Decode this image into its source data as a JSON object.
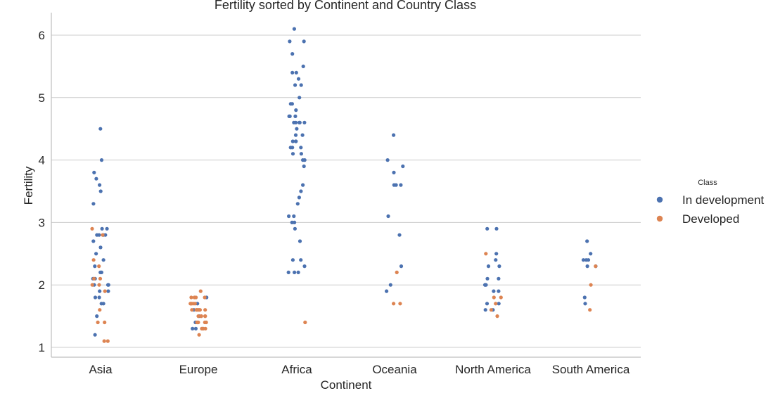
{
  "chart_data": {
    "type": "scatter",
    "style": "stripplot",
    "title": "Fertility sorted by Continent and Country Class",
    "xlabel": "Continent",
    "ylabel": "Fertility",
    "categories": [
      "Asia",
      "Europe",
      "Africa",
      "Oceania",
      "North America",
      "South America"
    ],
    "yticks": [
      1,
      2,
      3,
      4,
      5,
      6
    ],
    "ylim": [
      0.85,
      6.35
    ],
    "grid": "horizontal",
    "legend": {
      "title": "Class",
      "placement": "right"
    },
    "series": [
      {
        "name": "In development",
        "color": "#4c72b0",
        "points": {
          "Asia": [
            4.5,
            4.0,
            3.8,
            3.7,
            3.6,
            3.5,
            3.3,
            2.9,
            2.9,
            2.8,
            2.8,
            2.8,
            2.8,
            2.7,
            2.6,
            2.5,
            2.4,
            2.3,
            2.2,
            2.2,
            2.1,
            2.1,
            2.0,
            2.0,
            2.0,
            1.9,
            1.9,
            1.8,
            1.8,
            1.7,
            1.7,
            1.5,
            1.2
          ],
          "Europe": [
            1.8,
            1.7,
            1.6,
            1.5,
            1.4,
            1.3,
            1.3,
            1.3
          ],
          "Africa": [
            6.1,
            5.9,
            5.9,
            5.7,
            5.5,
            5.4,
            5.4,
            5.3,
            5.2,
            5.2,
            5.0,
            4.9,
            4.9,
            4.8,
            4.7,
            4.7,
            4.7,
            4.6,
            4.6,
            4.6,
            4.6,
            4.6,
            4.5,
            4.4,
            4.4,
            4.3,
            4.3,
            4.3,
            4.2,
            4.2,
            4.2,
            4.1,
            4.1,
            4.0,
            4.0,
            3.9,
            3.6,
            3.5,
            3.4,
            3.3,
            3.1,
            3.1,
            3.0,
            3.0,
            2.9,
            2.7,
            2.4,
            2.4,
            2.3,
            2.2,
            2.2,
            2.2
          ],
          "Oceania": [
            4.4,
            4.0,
            3.9,
            3.8,
            3.6,
            3.6,
            3.6,
            3.1,
            2.8,
            2.3,
            2.0,
            1.9
          ],
          "North America": [
            2.9,
            2.9,
            2.5,
            2.4,
            2.3,
            2.3,
            2.1,
            2.1,
            2.0,
            2.0,
            2.0,
            1.9,
            1.9,
            1.7,
            1.7,
            1.6,
            1.6
          ],
          "South America": [
            2.7,
            2.5,
            2.4,
            2.4,
            2.4,
            2.3,
            2.3,
            1.8,
            1.7
          ]
        }
      },
      {
        "name": "Developed",
        "color": "#dd8452",
        "points": {
          "Asia": [
            2.9,
            2.8,
            2.4,
            2.3,
            2.1,
            2.1,
            2.0,
            2.0,
            1.9,
            1.6,
            1.4,
            1.4,
            1.1,
            1.1
          ],
          "Europe": [
            1.9,
            1.8,
            1.8,
            1.8,
            1.8,
            1.7,
            1.7,
            1.7,
            1.7,
            1.7,
            1.6,
            1.6,
            1.6,
            1.6,
            1.6,
            1.6,
            1.6,
            1.6,
            1.5,
            1.5,
            1.5,
            1.5,
            1.5,
            1.4,
            1.4,
            1.4,
            1.4,
            1.4,
            1.3,
            1.3,
            1.3,
            1.2
          ],
          "Africa": [
            1.4
          ],
          "Oceania": [
            2.2,
            1.7,
            1.7
          ],
          "North America": [
            2.5,
            1.8,
            1.8,
            1.7,
            1.6,
            1.5
          ],
          "South America": [
            2.3,
            2.0,
            1.6
          ]
        }
      }
    ]
  }
}
